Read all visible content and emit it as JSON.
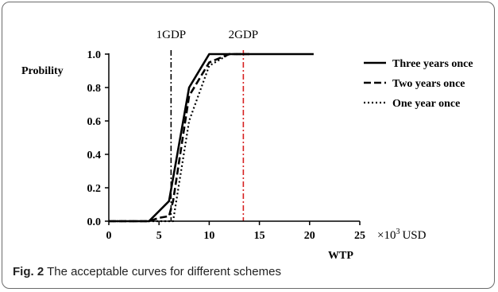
{
  "caption": {
    "fig_label": "Fig. 2",
    "text": "The acceptable curves for different schemes"
  },
  "chart_data": {
    "type": "line",
    "ylabel": "Probility",
    "xlabel": "WTP",
    "x_unit_prefix": "×10",
    "x_unit_exp": "3",
    "x_unit_suffix": "USD",
    "xlim": [
      0,
      25
    ],
    "ylim": [
      0,
      1
    ],
    "xticks": [
      "0",
      "5",
      "10",
      "15",
      "20",
      "25"
    ],
    "yticks": [
      "0.0",
      "0.2",
      "0.4",
      "0.6",
      "0.8",
      "1.0"
    ],
    "reference_lines": [
      {
        "label": "1GDP",
        "x": 6.2,
        "color": "#000000"
      },
      {
        "label": "2GDP",
        "x": 13.4,
        "color": "#d62020"
      }
    ],
    "series": [
      {
        "name": "Three years once",
        "style": "solid",
        "x": [
          0,
          4,
          6,
          8,
          10,
          12,
          14,
          16,
          18,
          20.4
        ],
        "y": [
          0,
          0,
          0.12,
          0.8,
          1.0,
          1.0,
          1.0,
          1.0,
          1.0,
          1.0
        ]
      },
      {
        "name": "Two years once",
        "style": "dashed",
        "x": [
          0,
          4,
          5,
          6,
          6.4,
          8,
          10,
          12,
          14
        ],
        "y": [
          0,
          0,
          0.02,
          0.03,
          0.12,
          0.75,
          0.95,
          1.0,
          1.0
        ]
      },
      {
        "name": "One year once",
        "style": "dotted",
        "x": [
          0,
          4,
          5,
          6.4,
          8,
          10,
          12,
          14
        ],
        "y": [
          0,
          0,
          0.0,
          0.0,
          0.6,
          0.93,
          1.0,
          1.0
        ]
      }
    ]
  }
}
